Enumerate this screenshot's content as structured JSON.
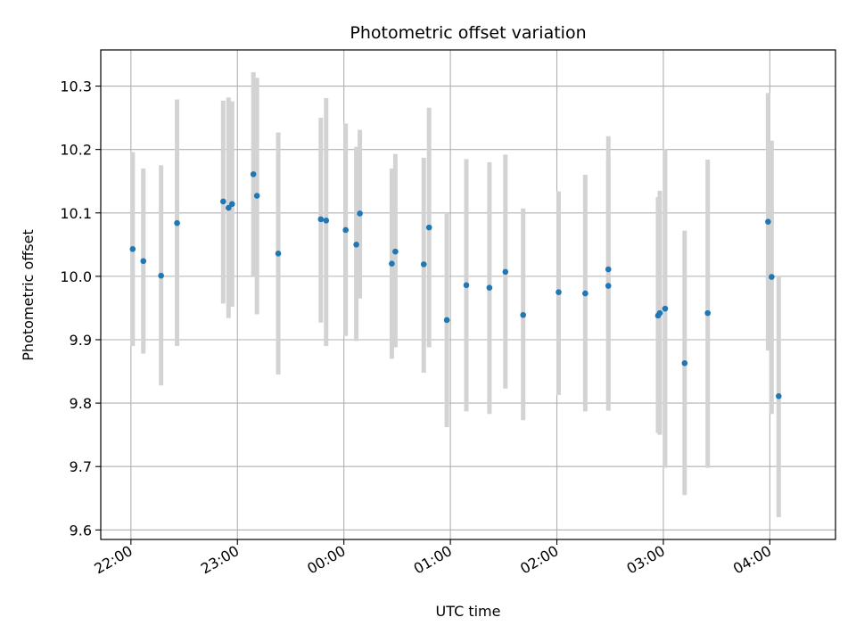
{
  "chart_data": {
    "type": "scatter",
    "title": "Photometric offset variation",
    "xlabel": "UTC time",
    "ylabel": "Photometric offset",
    "x_tick_labels": [
      "22:00",
      "23:00",
      "00:00",
      "01:00",
      "02:00",
      "03:00",
      "04:00"
    ],
    "y_tick_labels": [
      "9.6",
      "9.7",
      "9.8",
      "9.9",
      "10.0",
      "10.1",
      "10.2",
      "10.3"
    ],
    "y_ticks": [
      9.6,
      9.7,
      9.8,
      9.9,
      10.0,
      10.1,
      10.2,
      10.3
    ],
    "xlim": [
      "21:43",
      "04:37"
    ],
    "ylim": [
      9.585,
      10.357
    ],
    "grid": true,
    "colors": {
      "points": "#1f77b4",
      "error_bars": "#d3d3d3",
      "grid": "#b0b0b0"
    },
    "series": [
      {
        "x": [
          "22:01",
          "22:07",
          "22:17",
          "22:26",
          "22:52",
          "22:55",
          "22:57",
          "23:09",
          "23:11",
          "23:23",
          "23:47",
          "23:50",
          "00:01",
          "00:07",
          "00:09",
          "00:27",
          "00:29",
          "00:45",
          "00:48",
          "00:58",
          "01:09",
          "01:22",
          "01:31",
          "01:41",
          "02:01",
          "02:16",
          "02:29",
          "02:29",
          "02:57",
          "02:58",
          "03:01",
          "03:12",
          "03:25",
          "03:59",
          "04:01",
          "04:05"
        ],
        "y": [
          10.043,
          10.024,
          10.001,
          10.084,
          10.118,
          10.108,
          10.114,
          10.161,
          10.127,
          10.036,
          10.09,
          10.088,
          10.073,
          10.05,
          10.099,
          10.02,
          10.039,
          10.019,
          10.077,
          9.931,
          9.986,
          9.982,
          10.007,
          9.939,
          9.975,
          9.973,
          10.011,
          9.985,
          9.938,
          9.942,
          9.949,
          9.863,
          9.942,
          10.086,
          9.999,
          9.811
        ],
        "err_low": [
          9.89,
          9.878,
          9.828,
          9.89,
          9.957,
          9.934,
          9.952,
          10.0,
          9.94,
          9.845,
          9.927,
          9.89,
          9.906,
          9.898,
          9.965,
          9.87,
          9.888,
          9.848,
          9.888,
          9.762,
          9.787,
          9.783,
          9.823,
          9.773,
          9.813,
          9.787,
          9.8,
          9.788,
          9.753,
          9.75,
          9.698,
          9.655,
          9.698,
          9.883,
          9.783,
          9.62
        ],
        "err_high": [
          10.196,
          10.17,
          10.175,
          10.279,
          10.277,
          10.282,
          10.276,
          10.322,
          10.313,
          10.227,
          10.25,
          10.281,
          10.241,
          10.204,
          10.231,
          10.17,
          10.193,
          10.187,
          10.266,
          10.1,
          10.185,
          10.18,
          10.192,
          10.107,
          10.134,
          10.16,
          10.182,
          10.221,
          10.125,
          10.135,
          10.201,
          10.072,
          10.184,
          10.289,
          10.214,
          10.001
        ]
      }
    ]
  }
}
